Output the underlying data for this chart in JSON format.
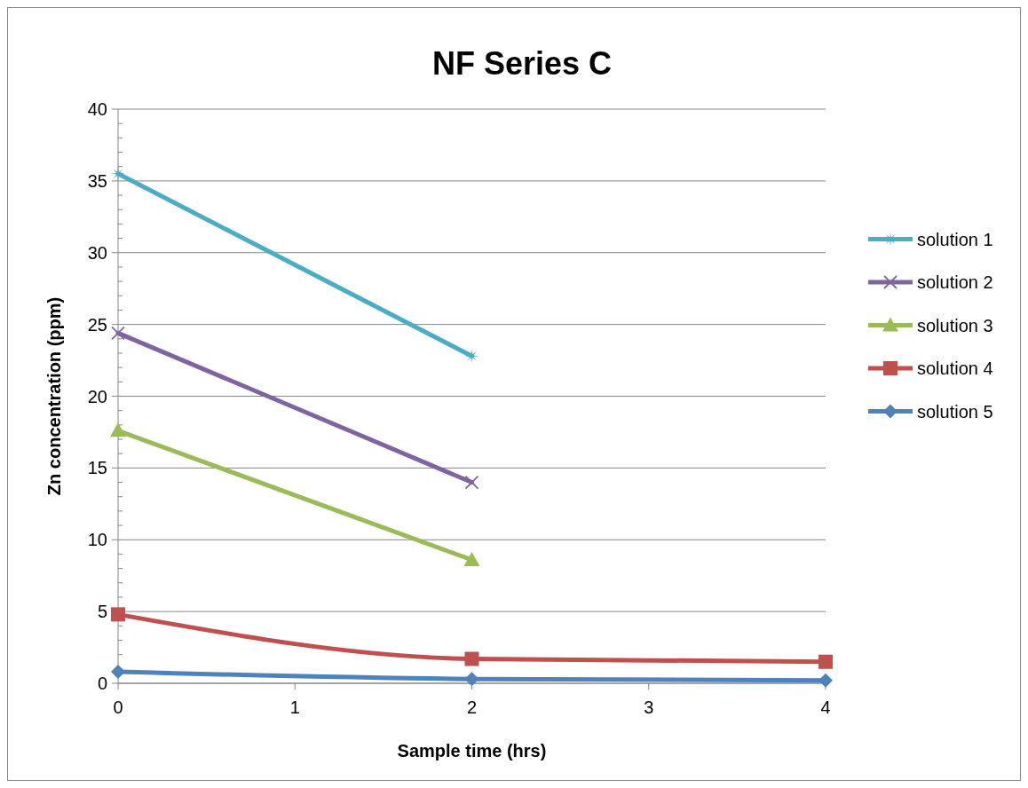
{
  "chart_data": {
    "type": "line",
    "title": "NF Series C",
    "xlabel": "Sample time (hrs)",
    "ylabel": "Zn concentration (ppm)",
    "x": [
      0,
      2,
      4
    ],
    "xlim": [
      0,
      4
    ],
    "xticks": [
      0,
      1,
      2,
      3,
      4
    ],
    "ylim": [
      0,
      40
    ],
    "yticks": [
      0,
      5,
      10,
      15,
      20,
      25,
      30,
      35,
      40
    ],
    "grid": "y",
    "legend": "right",
    "series": [
      {
        "name": "solution 1",
        "color": "#4bacc6",
        "marker": "star",
        "values": [
          35.5,
          22.8,
          null
        ]
      },
      {
        "name": "solution 2",
        "color": "#8064a2",
        "marker": "cross",
        "values": [
          24.4,
          14.0,
          null
        ]
      },
      {
        "name": "solution 3",
        "color": "#9bbb59",
        "marker": "triangle",
        "values": [
          17.6,
          8.6,
          null
        ]
      },
      {
        "name": "solution 4",
        "color": "#c0504d",
        "marker": "square",
        "values": [
          4.8,
          1.7,
          1.5
        ]
      },
      {
        "name": "solution 5",
        "color": "#4f81bd",
        "marker": "diamond",
        "values": [
          0.8,
          0.3,
          0.2
        ]
      }
    ]
  }
}
